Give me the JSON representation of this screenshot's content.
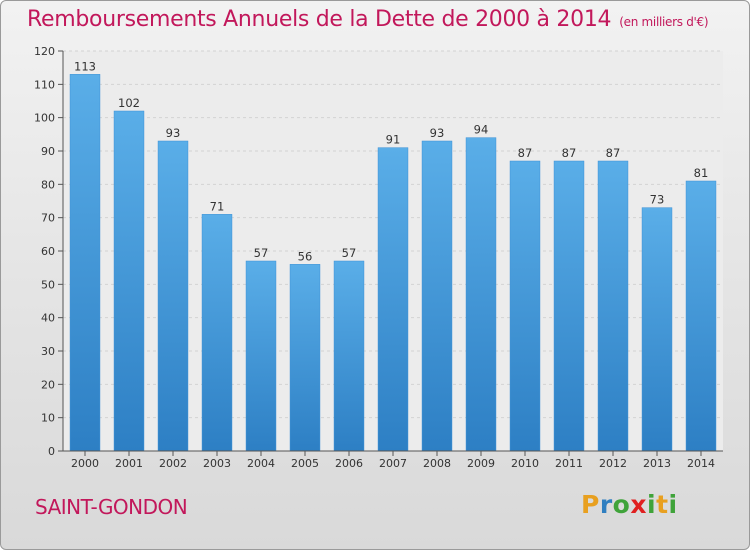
{
  "header": {
    "title": "Remboursements Annuels de la Dette de 2000 à 2014",
    "unit": "(en milliers d'€)"
  },
  "footer": {
    "commune": "SAINT-GONDON",
    "logo": [
      "P",
      "r",
      "o",
      "x",
      "i",
      "t",
      "i"
    ]
  },
  "colors": {
    "accent": "#c2185b",
    "bar_top": "#5aaee8",
    "bar_bottom": "#2d7fc4",
    "logo": [
      "#e8a020",
      "#2f7fc0",
      "#3fa33a",
      "#e02020",
      "#3fa33a",
      "#e8a020",
      "#3fa33a"
    ]
  },
  "chart_data": {
    "type": "bar",
    "title": "Remboursements Annuels de la Dette de 2000 à 2014",
    "xlabel": "",
    "ylabel": "",
    "categories": [
      "2000",
      "2001",
      "2002",
      "2003",
      "2004",
      "2005",
      "2006",
      "2007",
      "2008",
      "2009",
      "2010",
      "2011",
      "2012",
      "2013",
      "2014"
    ],
    "values": [
      113,
      102,
      93,
      71,
      57,
      56,
      57,
      91,
      93,
      94,
      87,
      87,
      87,
      73,
      81
    ],
    "ylim": [
      0,
      120
    ],
    "yticks": [
      0,
      10,
      20,
      30,
      40,
      50,
      60,
      70,
      80,
      90,
      100,
      110,
      120
    ],
    "grid": true
  }
}
